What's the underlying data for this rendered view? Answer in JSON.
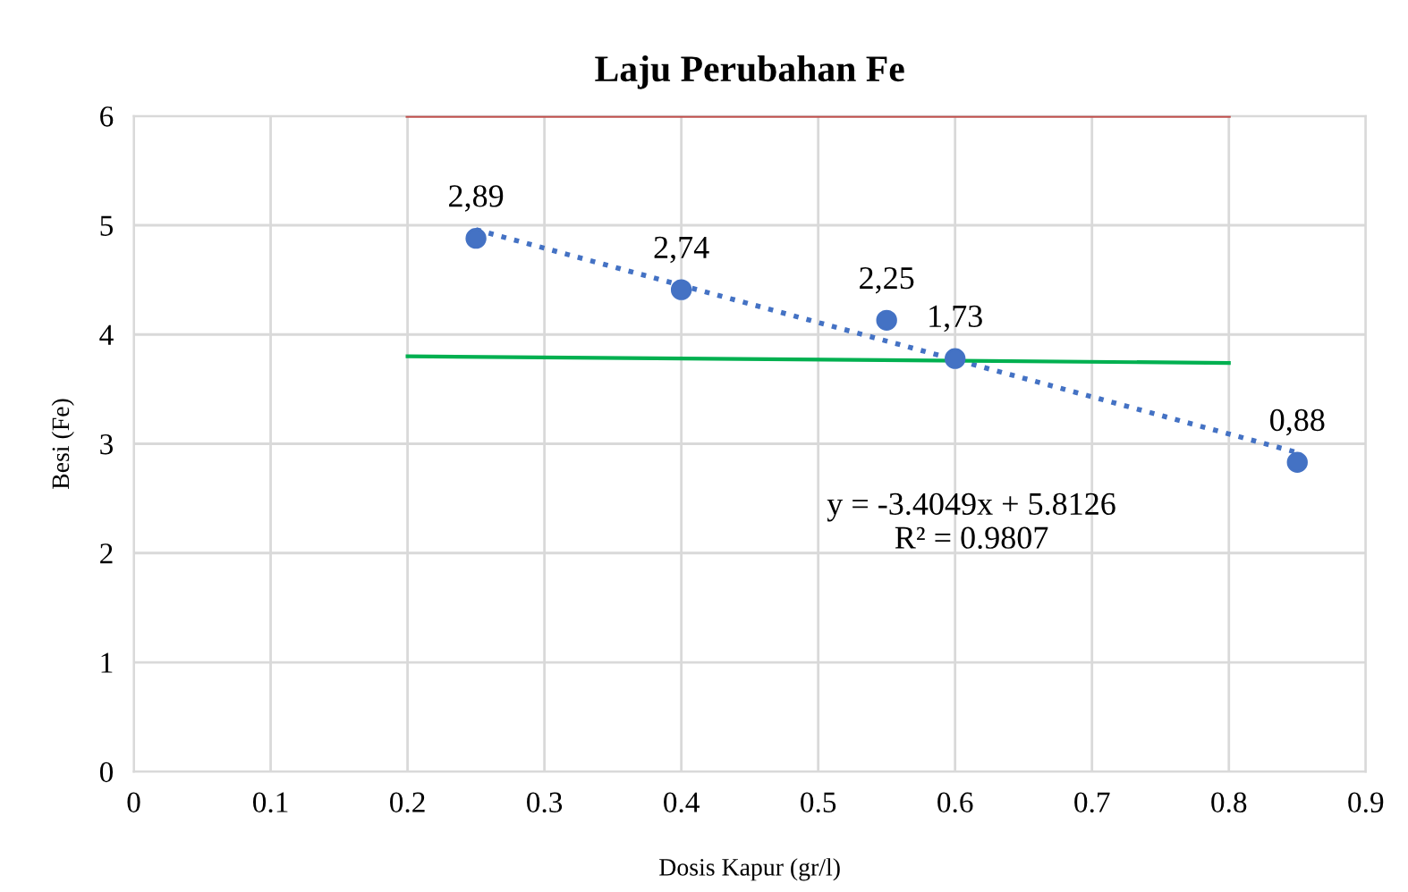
{
  "chart_data": {
    "type": "scatter",
    "title": "Laju Perubahan Fe",
    "xlabel": "Dosis Kapur (gr/l)",
    "ylabel": "Besi (Fe)",
    "x": [
      0.25,
      0.4,
      0.55,
      0.6,
      0.85
    ],
    "series": [
      {
        "color": "#4472c4",
        "values": [
          4.88,
          4.41,
          4.13,
          3.78,
          2.83
        ],
        "marker": "circle"
      },
      {
        "type": "line",
        "color": "#4472c4",
        "x": [
          0.25,
          0.85
        ],
        "values": [
          4.96,
          2.92
        ],
        "line_style": "dotted"
      },
      {
        "type": "line",
        "color": "#c0504d",
        "x": [
          0.2,
          0.8
        ],
        "values": [
          6.0,
          6.0
        ],
        "line_style": "solid"
      },
      {
        "type": "line",
        "color": "#00b050",
        "x": [
          0.2,
          0.8
        ],
        "values": [
          3.8,
          3.74
        ],
        "line_style": "solid"
      }
    ],
    "annotations": [
      {
        "text": "2,89",
        "x": 0.25,
        "y": 4.88
      },
      {
        "text": "2,74",
        "x": 0.4,
        "y": 4.41
      },
      {
        "text": "2,25",
        "x": 0.55,
        "y": 4.13
      },
      {
        "text": "1,73",
        "x": 0.6,
        "y": 3.78
      },
      {
        "text": "0,88",
        "x": 0.85,
        "y": 2.83
      },
      "y = -3.4049x + 5.8126\nR² = 0.9807"
    ],
    "xlim": [
      0,
      0.9
    ],
    "xticks": [
      0,
      0.1,
      0.2,
      0.3,
      0.4,
      0.5,
      0.6,
      0.7,
      0.8,
      0.9
    ],
    "ylim": [
      0,
      6
    ],
    "yticks": [
      0,
      1,
      2,
      3,
      4,
      5,
      6
    ],
    "grid": true,
    "legend": false
  }
}
